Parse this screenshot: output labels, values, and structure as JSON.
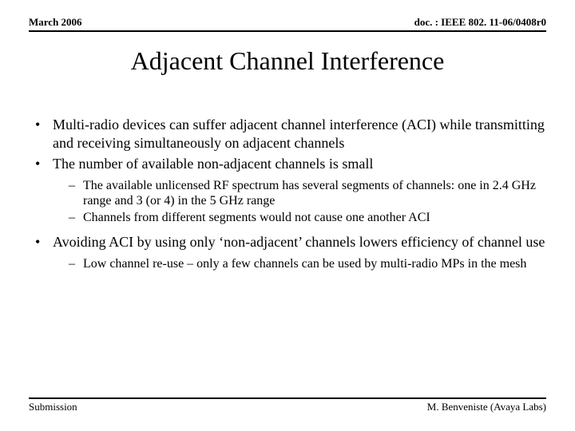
{
  "header": {
    "left": "March 2006",
    "right": "doc. : IEEE 802. 11-06/0408r0"
  },
  "title": "Adjacent Channel Interference",
  "bullets": [
    {
      "text": "Multi-radio devices can suffer adjacent channel interference (ACI) while transmitting and receiving simultaneously on adjacent channels"
    },
    {
      "text": "The number of available non-adjacent channels is small",
      "sub": [
        "The available unlicensed RF spectrum has several segments of channels: one in 2.4 GHz range and 3 (or 4) in the 5 GHz range",
        "Channels from different segments would not cause one another ACI"
      ]
    },
    {
      "text": "Avoiding ACI by using only ‘non-adjacent’ channels lowers efficiency of channel use",
      "sub": [
        "Low channel re-use – only a few channels can be used by multi-radio MPs in the mesh"
      ]
    }
  ],
  "footer": {
    "left": "Submission",
    "right": "M. Benveniste (Avaya Labs)"
  }
}
